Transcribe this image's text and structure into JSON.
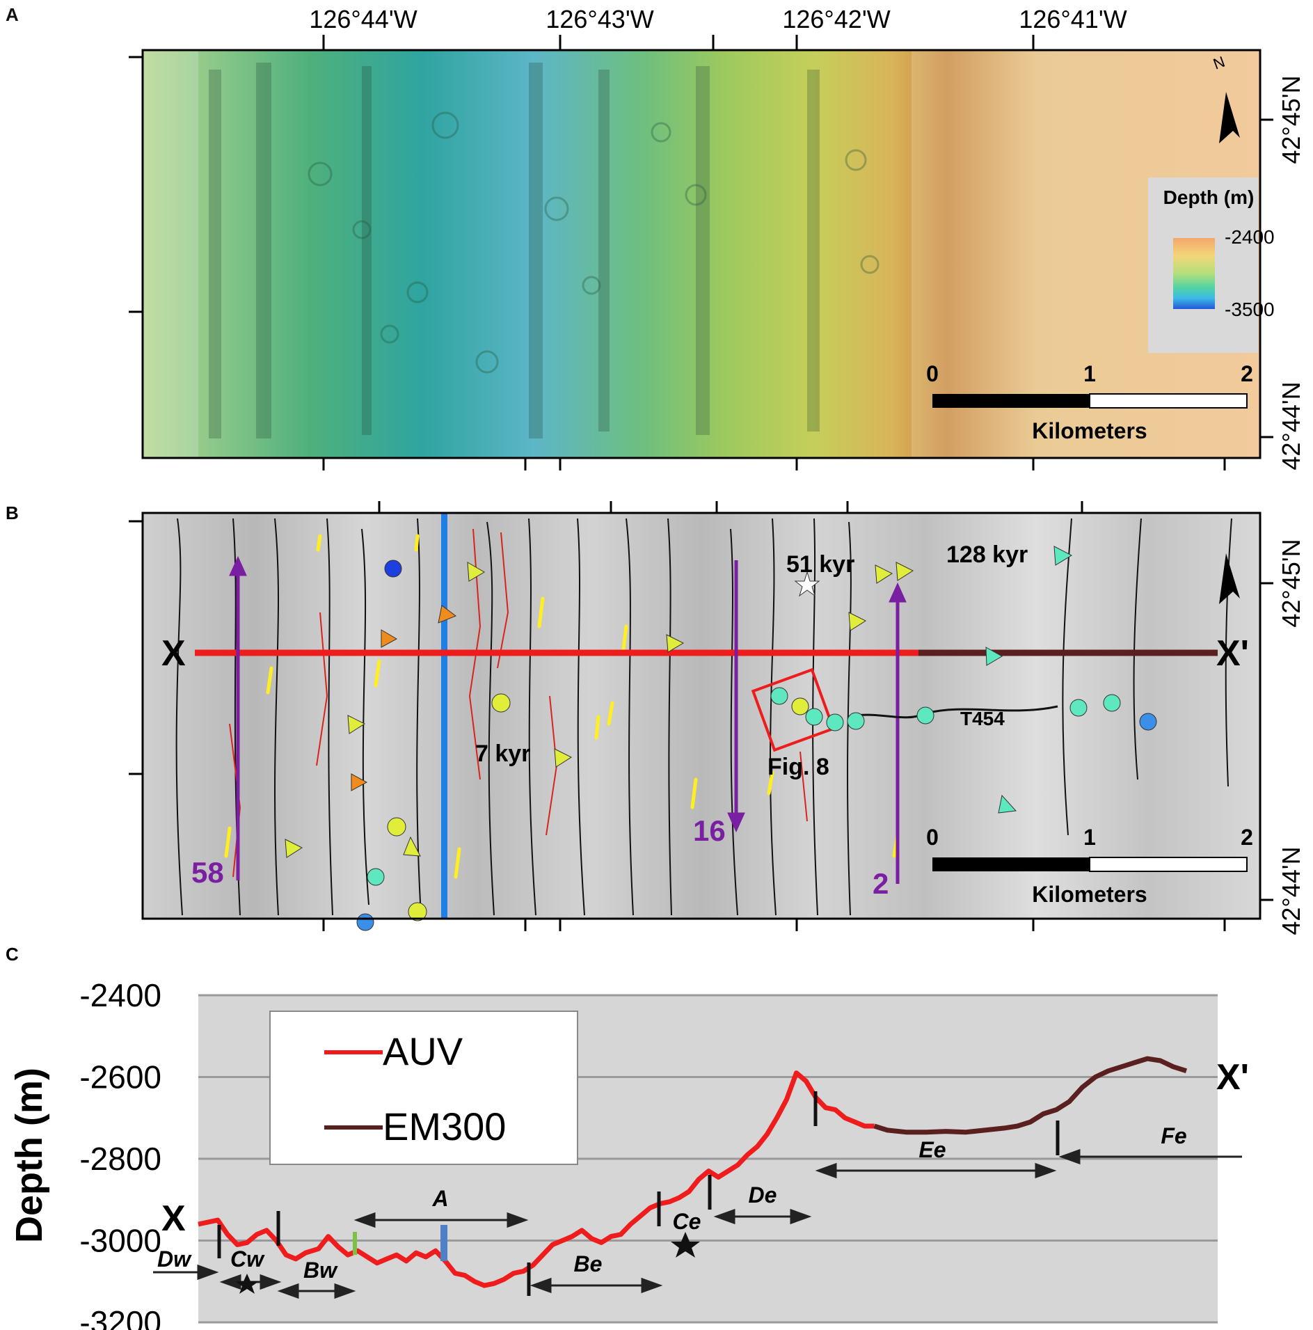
{
  "panel_a": {
    "letter": "A",
    "lon_labels": [
      "126°44'W",
      "126°43'W",
      "126°42'W",
      "126°41'W"
    ],
    "lat_labels": [
      "42°45'N",
      "42°44'N"
    ],
    "north_label": "N",
    "legend": {
      "title": "Depth (m)",
      "max": "-2400",
      "min": "-3500"
    },
    "scale_bar": {
      "ticks": [
        "0",
        "1",
        "2"
      ],
      "unit": "Kilometers"
    }
  },
  "panel_b": {
    "letter": "B",
    "lat_labels": [
      "42°45'N",
      "42°44'N"
    ],
    "profile_start": "X",
    "profile_end": "X'",
    "ages": [
      "51 kyr",
      "128 kyr",
      "7 kyr"
    ],
    "track_label": "T454",
    "fig_label": "Fig. 8",
    "dive_labels": [
      "58",
      "16",
      "2"
    ],
    "scale_bar": {
      "ticks": [
        "0",
        "1",
        "2"
      ],
      "unit": "Kilometers"
    }
  },
  "panel_c": {
    "letter": "C",
    "chart_data": {
      "type": "line",
      "ylabel": "Depth (m)",
      "xlabel": "",
      "ylim": [
        -3200,
        -2400
      ],
      "yticks": [
        "-2400",
        "-2600",
        "-2800",
        "-3000",
        "-3200"
      ],
      "grid": true,
      "legend_position": "top-left",
      "start_label": "X",
      "end_label": "X'",
      "series": [
        {
          "name": "AUV",
          "color": "#ee1c1c",
          "points": [
            [
              0,
              -2960
            ],
            [
              6,
              -2950
            ],
            [
              9,
              -2985
            ],
            [
              12,
              -3010
            ],
            [
              15,
              -3005
            ],
            [
              18,
              -2985
            ],
            [
              21,
              -2975
            ],
            [
              24,
              -3000
            ],
            [
              27,
              -3035
            ],
            [
              30,
              -3045
            ],
            [
              33,
              -3030
            ],
            [
              37,
              -3020
            ],
            [
              40,
              -2990
            ],
            [
              43,
              -3015
            ],
            [
              46,
              -3035
            ],
            [
              49,
              -3025
            ],
            [
              52,
              -3040
            ],
            [
              55,
              -3055
            ],
            [
              58,
              -3045
            ],
            [
              61,
              -3035
            ],
            [
              64,
              -3050
            ],
            [
              67,
              -3030
            ],
            [
              70,
              -3040
            ],
            [
              73,
              -3025
            ],
            [
              76,
              -3050
            ],
            [
              79,
              -3080
            ],
            [
              82,
              -3085
            ],
            [
              85,
              -3100
            ],
            [
              88,
              -3110
            ],
            [
              91,
              -3105
            ],
            [
              94,
              -3095
            ],
            [
              97,
              -3080
            ],
            [
              100,
              -3075
            ],
            [
              103,
              -3060
            ],
            [
              106,
              -3035
            ],
            [
              109,
              -3010
            ],
            [
              112,
              -3000
            ],
            [
              115,
              -2990
            ],
            [
              118,
              -2975
            ],
            [
              121,
              -2995
            ],
            [
              124,
              -3005
            ],
            [
              127,
              -2990
            ],
            [
              130,
              -2985
            ],
            [
              133,
              -2960
            ],
            [
              136,
              -2940
            ],
            [
              139,
              -2920
            ],
            [
              142,
              -2910
            ],
            [
              145,
              -2905
            ],
            [
              148,
              -2895
            ],
            [
              151,
              -2880
            ],
            [
              154,
              -2850
            ],
            [
              157,
              -2830
            ],
            [
              160,
              -2845
            ],
            [
              163,
              -2830
            ],
            [
              166,
              -2815
            ],
            [
              169,
              -2790
            ],
            [
              172,
              -2770
            ],
            [
              175,
              -2740
            ],
            [
              178,
              -2700
            ],
            [
              181,
              -2655
            ],
            [
              184,
              -2590
            ],
            [
              187,
              -2610
            ],
            [
              190,
              -2650
            ],
            [
              193,
              -2675
            ],
            [
              196,
              -2680
            ],
            [
              199,
              -2700
            ],
            [
              202,
              -2710
            ],
            [
              205,
              -2720
            ],
            [
              208,
              -2720
            ]
          ]
        },
        {
          "name": "EM300",
          "color": "#5a1f1f",
          "points": [
            [
              208,
              -2720
            ],
            [
              212,
              -2730
            ],
            [
              218,
              -2735
            ],
            [
              224,
              -2735
            ],
            [
              230,
              -2733
            ],
            [
              236,
              -2735
            ],
            [
              242,
              -2730
            ],
            [
              248,
              -2725
            ],
            [
              252,
              -2720
            ],
            [
              256,
              -2710
            ],
            [
              260,
              -2690
            ],
            [
              264,
              -2680
            ],
            [
              268,
              -2660
            ],
            [
              272,
              -2625
            ],
            [
              276,
              -2600
            ],
            [
              280,
              -2585
            ],
            [
              284,
              -2575
            ],
            [
              288,
              -2565
            ],
            [
              292,
              -2555
            ],
            [
              296,
              -2560
            ],
            [
              300,
              -2575
            ],
            [
              304,
              -2585
            ]
          ]
        }
      ],
      "segment_labels": [
        "Dw",
        "Cw",
        "Bw",
        "A",
        "Be",
        "Ce",
        "De",
        "Ee",
        "Fe"
      ]
    }
  }
}
